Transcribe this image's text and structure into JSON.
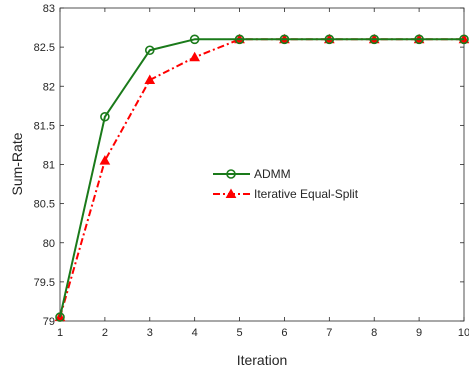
{
  "chart_data": {
    "type": "line",
    "title": "",
    "xlabel": "Iteration",
    "ylabel": "Sum-Rate",
    "xlim": [
      1,
      10
    ],
    "ylim": [
      79,
      83
    ],
    "x": [
      1,
      2,
      3,
      4,
      5,
      6,
      7,
      8,
      9,
      10
    ],
    "xticks": [
      "1",
      "2",
      "3",
      "4",
      "5",
      "6",
      "7",
      "8",
      "9",
      "10"
    ],
    "yticks": [
      "79",
      "79.5",
      "80",
      "80.5",
      "81",
      "81.5",
      "82",
      "82.5",
      "83"
    ],
    "grid": false,
    "legend_position": "center-right",
    "series": [
      {
        "name": "ADMM",
        "values": [
          79.05,
          81.61,
          82.46,
          82.6,
          82.6,
          82.6,
          82.6,
          82.6,
          82.6,
          82.6
        ],
        "color": "#1a7a1a",
        "line_style": "solid",
        "marker": "circle"
      },
      {
        "name": "Iterative Equal-Split",
        "values": [
          79.05,
          81.05,
          82.08,
          82.37,
          82.6,
          82.6,
          82.6,
          82.6,
          82.6,
          82.6
        ],
        "color": "#ff0000",
        "line_style": "dashdot",
        "marker": "triangle"
      }
    ]
  }
}
